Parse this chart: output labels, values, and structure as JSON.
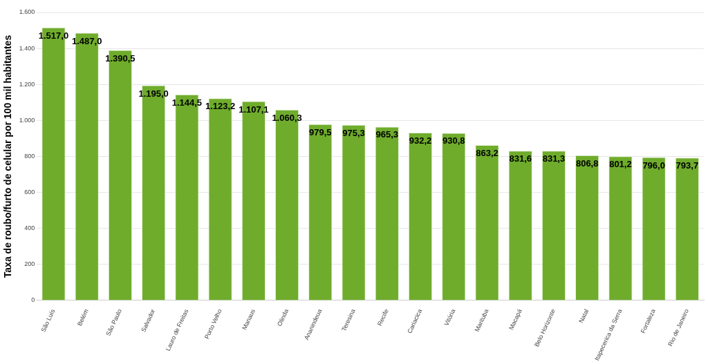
{
  "chart_data": {
    "type": "bar",
    "ylabel": "Taxa de roubo/furto de celular por 100 mil habitantes",
    "categories": [
      "São Luís",
      "Belém",
      "São Paulo",
      "Salvador",
      "Lauro de Freitas",
      "Porto Velho",
      "Manaus",
      "Olinda",
      "Ananindeua",
      "Teresina",
      "Recife",
      "Cariacica",
      "Vitória",
      "Marituba",
      "Macapá",
      "Belo Horizonte",
      "Natal",
      "Itapecerica da Serra",
      "Fortaleza",
      "Rio de Janeiro"
    ],
    "values": [
      1517.0,
      1487.0,
      1390.5,
      1195.0,
      1144.5,
      1123.2,
      1107.1,
      1060.3,
      979.5,
      975.3,
      965.3,
      932.2,
      930.8,
      863.2,
      831.6,
      831.3,
      806.8,
      801.2,
      796.0,
      793.7
    ],
    "value_labels": [
      "1.517,0",
      "1.487,0",
      "1.390,5",
      "1.195,0",
      "1.144,5",
      "1.123,2",
      "1.107,1",
      "1.060,3",
      "979,5",
      "975,3",
      "965,3",
      "932,2",
      "930,8",
      "863,2",
      "831,6",
      "831,3",
      "806,8",
      "801,2",
      "796,0",
      "793,7"
    ],
    "color": "#6fac2c",
    "ylim": [
      0,
      1600
    ],
    "yticks": [
      0,
      200,
      400,
      600,
      800,
      {
        "value": 1000,
        "label": "1.000"
      },
      {
        "value": 1200,
        "label": "1.200"
      },
      {
        "value": 1400,
        "label": "1.400"
      },
      {
        "value": 1600,
        "label": "1.600"
      }
    ],
    "grid": "y",
    "legend": false
  }
}
